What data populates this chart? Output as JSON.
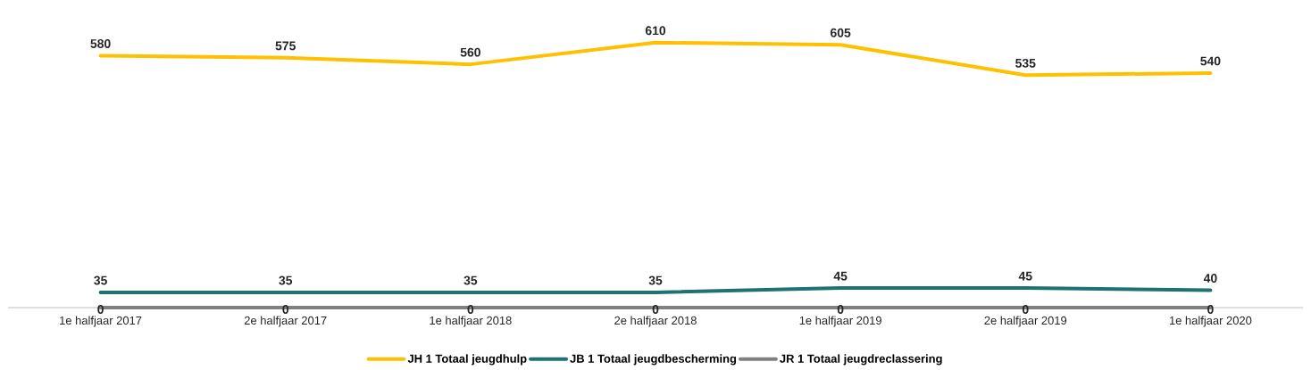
{
  "chart_data": {
    "type": "line",
    "categories": [
      "1e halfjaar 2017",
      "2e halfjaar 2017",
      "1e halfjaar 2018",
      "2e halfjaar 2018",
      "1e halfjaar 2019",
      "2e halfjaar 2019",
      "1e halfjaar 2020"
    ],
    "series": [
      {
        "name": "JH 1 Totaal jeugdhulp",
        "color": "#ffc000",
        "values": [
          580,
          575,
          560,
          610,
          605,
          535,
          540
        ]
      },
      {
        "name": "JB 1 Totaal jeugdbescherming",
        "color": "#1f7272",
        "values": [
          35,
          35,
          35,
          35,
          45,
          45,
          40
        ]
      },
      {
        "name": "JR 1 Totaal jeugdreclassering",
        "color": "#808080",
        "values": [
          0,
          0,
          0,
          0,
          0,
          0,
          0
        ]
      }
    ],
    "data_labels": true,
    "legend": "bottom",
    "marker": "none",
    "line_style": "solid",
    "grid": false
  }
}
